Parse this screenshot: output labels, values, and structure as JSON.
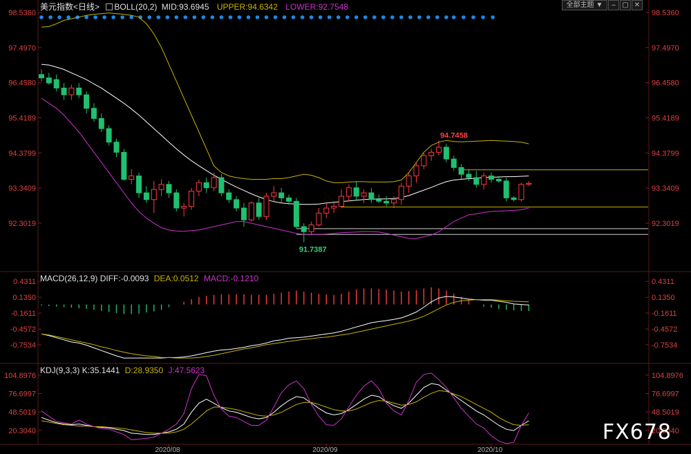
{
  "header": {
    "name": "美元指数",
    "period": "<日线>",
    "boll_label": "BOLL(20,2)",
    "mid": "MID:93.6945",
    "upper": "UPPER:94.6342",
    "lower": "LOWER:92.7548",
    "dropdown_label": "全部主题",
    "colors": {
      "upper": "#c8b400",
      "lower": "#cc33cc",
      "mid": "#ffffff",
      "up": "#ff3c3c",
      "down": "#20c070"
    }
  },
  "watermark": "FX678",
  "chart_data": [
    {
      "type": "candlestick",
      "panel": "price",
      "title": "美元指数 <日线>",
      "yticks": [
        "98.5360",
        "97.4970",
        "96.4580",
        "95.4189",
        "94.3799",
        "93.3409",
        "92.3019"
      ],
      "ylim": [
        91.3,
        98.536
      ],
      "xticks": [
        "2020/08",
        "2020/09",
        "2020/10"
      ],
      "annotations": [
        {
          "text": "94.7458",
          "index": 53,
          "value": 94.7458,
          "kind": "high"
        },
        {
          "text": "91.7387",
          "index": 34,
          "value": 91.7387,
          "kind": "low"
        }
      ],
      "reference_lines": [
        {
          "value": 93.88,
          "from": 56,
          "kind": "resistance"
        },
        {
          "value": 92.78,
          "from": 40,
          "kind": "support"
        },
        {
          "value": 92.14,
          "from": 34,
          "kind": "support"
        },
        {
          "value": 91.97,
          "from": 34,
          "kind": "support"
        }
      ],
      "candles": [
        {
          "o": 96.7,
          "h": 96.85,
          "l": 96.5,
          "c": 96.6
        },
        {
          "o": 96.6,
          "h": 96.75,
          "l": 96.4,
          "c": 96.45
        },
        {
          "o": 96.55,
          "h": 96.7,
          "l": 96.2,
          "c": 96.3
        },
        {
          "o": 96.3,
          "h": 96.45,
          "l": 95.95,
          "c": 96.1
        },
        {
          "o": 96.1,
          "h": 96.4,
          "l": 95.95,
          "c": 96.3
        },
        {
          "o": 96.3,
          "h": 96.45,
          "l": 96.0,
          "c": 96.1
        },
        {
          "o": 96.1,
          "h": 96.2,
          "l": 95.55,
          "c": 95.7
        },
        {
          "o": 95.7,
          "h": 95.85,
          "l": 95.3,
          "c": 95.4
        },
        {
          "o": 95.4,
          "h": 95.55,
          "l": 95.0,
          "c": 95.1
        },
        {
          "o": 95.1,
          "h": 95.2,
          "l": 94.6,
          "c": 94.7
        },
        {
          "o": 94.7,
          "h": 94.8,
          "l": 94.25,
          "c": 94.4
        },
        {
          "o": 94.4,
          "h": 94.5,
          "l": 93.55,
          "c": 93.6
        },
        {
          "o": 93.6,
          "h": 93.9,
          "l": 93.45,
          "c": 93.7
        },
        {
          "o": 93.7,
          "h": 93.8,
          "l": 93.05,
          "c": 93.2
        },
        {
          "o": 93.2,
          "h": 93.4,
          "l": 92.9,
          "c": 93.0
        },
        {
          "o": 93.0,
          "h": 93.55,
          "l": 92.6,
          "c": 93.3
        },
        {
          "o": 93.3,
          "h": 93.6,
          "l": 93.1,
          "c": 93.45
        },
        {
          "o": 93.45,
          "h": 93.55,
          "l": 93.05,
          "c": 93.2
        },
        {
          "o": 93.2,
          "h": 93.3,
          "l": 92.65,
          "c": 92.75
        },
        {
          "o": 92.75,
          "h": 92.9,
          "l": 92.5,
          "c": 92.8
        },
        {
          "o": 92.8,
          "h": 93.35,
          "l": 92.7,
          "c": 93.25
        },
        {
          "o": 93.25,
          "h": 93.6,
          "l": 93.1,
          "c": 93.5
        },
        {
          "o": 93.5,
          "h": 93.65,
          "l": 93.2,
          "c": 93.35
        },
        {
          "o": 93.35,
          "h": 93.8,
          "l": 93.25,
          "c": 93.65
        },
        {
          "o": 93.65,
          "h": 93.75,
          "l": 93.1,
          "c": 93.2
        },
        {
          "o": 93.2,
          "h": 93.3,
          "l": 92.9,
          "c": 93.0
        },
        {
          "o": 93.0,
          "h": 93.1,
          "l": 92.65,
          "c": 92.75
        },
        {
          "o": 92.75,
          "h": 92.9,
          "l": 92.2,
          "c": 92.4
        },
        {
          "o": 92.4,
          "h": 92.95,
          "l": 92.35,
          "c": 92.9
        },
        {
          "o": 92.9,
          "h": 93.05,
          "l": 92.4,
          "c": 92.5
        },
        {
          "o": 92.5,
          "h": 93.2,
          "l": 92.4,
          "c": 93.1
        },
        {
          "o": 93.1,
          "h": 93.4,
          "l": 92.95,
          "c": 93.2
        },
        {
          "o": 93.2,
          "h": 93.35,
          "l": 92.9,
          "c": 93.05
        },
        {
          "o": 93.05,
          "h": 93.15,
          "l": 92.85,
          "c": 92.95
        },
        {
          "o": 92.95,
          "h": 93.05,
          "l": 92.15,
          "c": 92.2
        },
        {
          "o": 92.2,
          "h": 92.3,
          "l": 91.74,
          "c": 92.05
        },
        {
          "o": 92.05,
          "h": 92.35,
          "l": 91.95,
          "c": 92.25
        },
        {
          "o": 92.25,
          "h": 92.75,
          "l": 92.2,
          "c": 92.6
        },
        {
          "o": 92.6,
          "h": 92.9,
          "l": 92.45,
          "c": 92.75
        },
        {
          "o": 92.75,
          "h": 92.9,
          "l": 92.6,
          "c": 92.8
        },
        {
          "o": 92.8,
          "h": 93.3,
          "l": 92.75,
          "c": 93.1
        },
        {
          "o": 93.1,
          "h": 93.45,
          "l": 92.95,
          "c": 93.35
        },
        {
          "o": 93.35,
          "h": 93.55,
          "l": 93.0,
          "c": 93.1
        },
        {
          "o": 93.1,
          "h": 93.3,
          "l": 92.9,
          "c": 93.2
        },
        {
          "o": 93.2,
          "h": 93.35,
          "l": 92.9,
          "c": 93.0
        },
        {
          "o": 93.0,
          "h": 93.15,
          "l": 92.9,
          "c": 92.95
        },
        {
          "o": 92.95,
          "h": 93.1,
          "l": 92.8,
          "c": 92.9
        },
        {
          "o": 92.9,
          "h": 93.1,
          "l": 92.75,
          "c": 93.0
        },
        {
          "o": 93.0,
          "h": 93.5,
          "l": 92.85,
          "c": 93.4
        },
        {
          "o": 93.4,
          "h": 93.8,
          "l": 93.2,
          "c": 93.7
        },
        {
          "o": 93.7,
          "h": 94.1,
          "l": 93.5,
          "c": 94.0
        },
        {
          "o": 94.0,
          "h": 94.4,
          "l": 93.9,
          "c": 94.3
        },
        {
          "o": 94.3,
          "h": 94.5,
          "l": 94.15,
          "c": 94.4
        },
        {
          "o": 94.4,
          "h": 94.75,
          "l": 94.3,
          "c": 94.55
        },
        {
          "o": 94.55,
          "h": 94.65,
          "l": 94.1,
          "c": 94.2
        },
        {
          "o": 94.2,
          "h": 94.3,
          "l": 93.85,
          "c": 93.95
        },
        {
          "o": 93.95,
          "h": 94.05,
          "l": 93.6,
          "c": 93.75
        },
        {
          "o": 93.75,
          "h": 93.9,
          "l": 93.55,
          "c": 93.65
        },
        {
          "o": 93.65,
          "h": 93.85,
          "l": 93.35,
          "c": 93.45
        },
        {
          "o": 93.45,
          "h": 93.8,
          "l": 93.3,
          "c": 93.7
        },
        {
          "o": 93.7,
          "h": 93.8,
          "l": 93.5,
          "c": 93.6
        },
        {
          "o": 93.6,
          "h": 93.7,
          "l": 93.5,
          "c": 93.55
        },
        {
          "o": 93.55,
          "h": 93.65,
          "l": 92.95,
          "c": 93.05
        },
        {
          "o": 93.05,
          "h": 93.1,
          "l": 92.95,
          "c": 93.0
        },
        {
          "o": 93.0,
          "h": 93.5,
          "l": 92.95,
          "c": 93.45
        },
        {
          "o": 93.45,
          "h": 93.55,
          "l": 93.4,
          "c": 93.48
        }
      ],
      "boll_upper": [
        98.1,
        98.12,
        98.2,
        98.3,
        98.35,
        98.4,
        98.45,
        98.48,
        98.5,
        98.52,
        98.5,
        98.48,
        98.45,
        98.4,
        98.2,
        97.9,
        97.5,
        97.0,
        96.5,
        96.0,
        95.5,
        95.0,
        94.5,
        94.0,
        93.8,
        93.7,
        93.65,
        93.62,
        93.6,
        93.6,
        93.6,
        93.62,
        93.62,
        93.65,
        93.7,
        93.75,
        93.72,
        93.65,
        93.55,
        93.5,
        93.5,
        93.52,
        93.53,
        93.53,
        93.52,
        93.52,
        93.52,
        93.53,
        93.58,
        93.8,
        94.1,
        94.4,
        94.6,
        94.7,
        94.75,
        94.72,
        94.71,
        94.72,
        94.73,
        94.74,
        94.75,
        94.74,
        94.73,
        94.72,
        94.7,
        94.65
      ],
      "boll_mid": [
        97.0,
        96.98,
        96.92,
        96.85,
        96.75,
        96.65,
        96.55,
        96.42,
        96.3,
        96.15,
        96.0,
        95.85,
        95.68,
        95.5,
        95.3,
        95.1,
        94.9,
        94.7,
        94.5,
        94.32,
        94.15,
        94.0,
        93.86,
        93.72,
        93.6,
        93.48,
        93.37,
        93.27,
        93.17,
        93.08,
        93.0,
        92.94,
        92.9,
        92.88,
        92.87,
        92.86,
        92.86,
        92.87,
        92.9,
        92.92,
        92.94,
        92.96,
        92.98,
        93.0,
        93.01,
        93.02,
        93.02,
        93.03,
        93.06,
        93.12,
        93.2,
        93.28,
        93.36,
        93.45,
        93.53,
        93.58,
        93.6,
        93.62,
        93.63,
        93.65,
        93.66,
        93.67,
        93.68,
        93.68,
        93.69,
        93.7
      ],
      "boll_lower": [
        96.0,
        95.85,
        95.7,
        95.5,
        95.25,
        95.0,
        94.7,
        94.4,
        94.1,
        93.8,
        93.5,
        93.2,
        92.9,
        92.65,
        92.45,
        92.3,
        92.17,
        92.1,
        92.07,
        92.06,
        92.08,
        92.1,
        92.15,
        92.2,
        92.25,
        92.3,
        92.35,
        92.35,
        92.3,
        92.25,
        92.2,
        92.15,
        92.1,
        92.05,
        92.0,
        91.97,
        91.97,
        91.97,
        91.98,
        92.0,
        92.02,
        92.03,
        92.04,
        92.05,
        92.05,
        92.04,
        92.0,
        91.95,
        91.9,
        91.85,
        91.85,
        91.9,
        91.95,
        92.05,
        92.2,
        92.35,
        92.45,
        92.55,
        92.58,
        92.62,
        92.65,
        92.66,
        92.67,
        92.68,
        92.7,
        92.75
      ],
      "band_markers_count": 51
    },
    {
      "type": "line+histogram",
      "panel": "macd",
      "title": "MACD(26,12,9)",
      "legend": [
        "DIFF:-0.0093",
        "DEA:0.0512",
        "MACD:-0.1210"
      ],
      "yticks": [
        "0.4311",
        "0.1350",
        "-0.1611",
        "-0.4572",
        "-0.7534"
      ],
      "ylim": [
        -1.05,
        0.55
      ],
      "diff": [
        -0.55,
        -0.58,
        -0.62,
        -0.66,
        -0.7,
        -0.72,
        -0.76,
        -0.81,
        -0.86,
        -0.91,
        -0.96,
        -1.0,
        -1.0,
        -1.0,
        -1.0,
        -1.0,
        -1.0,
        -0.99,
        -0.99,
        -0.98,
        -0.96,
        -0.93,
        -0.9,
        -0.87,
        -0.85,
        -0.84,
        -0.82,
        -0.8,
        -0.77,
        -0.75,
        -0.72,
        -0.68,
        -0.66,
        -0.63,
        -0.62,
        -0.61,
        -0.59,
        -0.57,
        -0.55,
        -0.53,
        -0.5,
        -0.46,
        -0.42,
        -0.38,
        -0.34,
        -0.32,
        -0.3,
        -0.28,
        -0.25,
        -0.2,
        -0.14,
        -0.05,
        0.05,
        0.12,
        0.15,
        0.14,
        0.12,
        0.1,
        0.09,
        0.08,
        0.08,
        0.06,
        0.04,
        0.01,
        0.0,
        -0.01
      ],
      "dea": [
        -0.55,
        -0.57,
        -0.6,
        -0.63,
        -0.66,
        -0.69,
        -0.72,
        -0.75,
        -0.79,
        -0.82,
        -0.86,
        -0.89,
        -0.92,
        -0.94,
        -0.96,
        -0.97,
        -0.99,
        -0.99,
        -1.0,
        -1.0,
        -1.0,
        -0.99,
        -0.97,
        -0.95,
        -0.92,
        -0.89,
        -0.86,
        -0.83,
        -0.81,
        -0.78,
        -0.75,
        -0.73,
        -0.71,
        -0.69,
        -0.67,
        -0.65,
        -0.64,
        -0.62,
        -0.61,
        -0.59,
        -0.57,
        -0.55,
        -0.52,
        -0.49,
        -0.46,
        -0.43,
        -0.4,
        -0.37,
        -0.34,
        -0.31,
        -0.27,
        -0.22,
        -0.15,
        -0.08,
        -0.01,
        0.04,
        0.07,
        0.08,
        0.09,
        0.09,
        0.09,
        0.08,
        0.07,
        0.06,
        0.055,
        0.05
      ],
      "macd": [
        -0.02,
        -0.03,
        -0.04,
        -0.05,
        -0.06,
        -0.07,
        -0.08,
        -0.1,
        -0.12,
        -0.14,
        -0.16,
        -0.18,
        -0.18,
        -0.17,
        -0.15,
        -0.13,
        -0.1,
        -0.05,
        0.0,
        0.05,
        0.1,
        0.14,
        0.16,
        0.18,
        0.19,
        0.19,
        0.19,
        0.19,
        0.18,
        0.18,
        0.18,
        0.2,
        0.22,
        0.24,
        0.26,
        0.24,
        0.22,
        0.2,
        0.19,
        0.18,
        0.2,
        0.24,
        0.28,
        0.3,
        0.3,
        0.29,
        0.28,
        0.26,
        0.24,
        0.25,
        0.27,
        0.3,
        0.32,
        0.3,
        0.26,
        0.2,
        0.14,
        0.08,
        0.0,
        -0.04,
        -0.06,
        -0.08,
        -0.1,
        -0.11,
        -0.12,
        -0.12
      ]
    },
    {
      "type": "line",
      "panel": "kdj",
      "title": "KDJ(9,3,3)",
      "legend": [
        "K:35.1441",
        "D:28.9350",
        "J:47.5623"
      ],
      "yticks": [
        "104.8976",
        "76.6997",
        "48.5019",
        "20.3040"
      ],
      "ylim": [
        0,
        110
      ],
      "k": [
        40,
        36,
        32,
        30,
        29,
        30,
        28,
        26,
        25,
        24,
        22,
        20,
        16,
        15,
        14,
        14,
        16,
        18,
        22,
        30,
        48,
        62,
        68,
        62,
        55,
        50,
        48,
        44,
        40,
        38,
        40,
        48,
        58,
        66,
        72,
        70,
        62,
        54,
        47,
        44,
        46,
        52,
        60,
        68,
        74,
        72,
        64,
        58,
        54,
        62,
        74,
        86,
        92,
        90,
        82,
        74,
        66,
        58,
        50,
        44,
        36,
        28,
        22,
        20,
        28,
        35
      ],
      "d": [
        35,
        33,
        31,
        29,
        28,
        27,
        27,
        26,
        26,
        25,
        24,
        23,
        21,
        19,
        17,
        16,
        16,
        16,
        18,
        22,
        30,
        40,
        50,
        56,
        56,
        54,
        52,
        49,
        46,
        43,
        42,
        44,
        48,
        54,
        60,
        63,
        63,
        60,
        56,
        52,
        50,
        50,
        53,
        58,
        63,
        66,
        65,
        62,
        59,
        60,
        64,
        71,
        77,
        81,
        80,
        76,
        72,
        66,
        60,
        54,
        48,
        40,
        34,
        29,
        28,
        29
      ],
      "j": [
        50,
        42,
        34,
        32,
        30,
        36,
        30,
        26,
        23,
        22,
        18,
        14,
        6,
        7,
        8,
        10,
        16,
        22,
        30,
        46,
        84,
        106,
        104,
        74,
        53,
        42,
        40,
        34,
        28,
        28,
        36,
        56,
        78,
        90,
        96,
        84,
        60,
        42,
        29,
        28,
        38,
        56,
        74,
        88,
        96,
        84,
        62,
        50,
        44,
        66,
        94,
        106,
        108,
        98,
        86,
        70,
        54,
        42,
        30,
        24,
        12,
        4,
        0,
        2,
        28,
        47
      ]
    }
  ]
}
